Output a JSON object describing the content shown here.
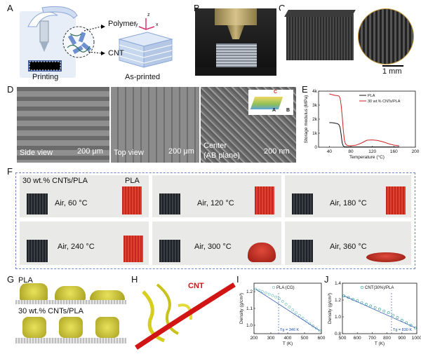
{
  "panels": {
    "A": {
      "label": "A",
      "polymer": "Polymer",
      "cnt": "CNT",
      "printing": "Printing",
      "as_printed": "As-printed",
      "axis_z": "z",
      "axis_y": "y",
      "axis_x": "x"
    },
    "B": {
      "label": "B"
    },
    "C": {
      "label": "C",
      "scalebar": "1 mm"
    },
    "D": {
      "label": "D",
      "side": "Side view",
      "side_scale": "200 μm",
      "top": "Top view",
      "top_scale": "200 μm",
      "center": "Center",
      "center2": "(AB plane)",
      "center_scale": "200 nm",
      "axis_a": "A",
      "axis_b": "B",
      "axis_c": "C"
    },
    "E": {
      "label": "E"
    },
    "F": {
      "label": "F",
      "label_cnt": "30 wt.% CNTs/PLA",
      "label_pla": "PLA",
      "conditions": [
        "Air, 60 °C",
        "Air, 120 °C",
        "Air, 180 °C",
        "Air, 240 °C",
        "Air, 300 °C",
        "Air, 360 °C"
      ]
    },
    "G": {
      "label": "G",
      "pla": "PLA",
      "cnt": "30 wt.% CNTs/PLA"
    },
    "H": {
      "label": "H",
      "cnt": "CNT"
    },
    "I": {
      "label": "I"
    },
    "J": {
      "label": "J"
    }
  },
  "chart_data": [
    {
      "type": "line",
      "panel": "E",
      "xlabel": "Temperature (°C)",
      "ylabel": "Storage modulus (MPa)",
      "xlim": [
        20,
        200
      ],
      "ylim": [
        0,
        4000
      ],
      "xticks": [
        "40",
        "80",
        "120",
        "160",
        "200"
      ],
      "yticks": [
        "0",
        "1k",
        "2k",
        "3k",
        "4k"
      ],
      "legend": "top-right",
      "series": [
        {
          "name": "PLA",
          "color": "#111111",
          "x": [
            40,
            45,
            50,
            55,
            58,
            60,
            62,
            64,
            66,
            68,
            70,
            75,
            80,
            90,
            100,
            120,
            140,
            160,
            170
          ],
          "y": [
            1750,
            1750,
            1720,
            1680,
            1600,
            1400,
            900,
            300,
            80,
            40,
            30,
            25,
            20,
            20,
            20,
            20,
            20,
            20,
            20
          ]
        },
        {
          "name": "30 wt.% CNTs/PLA",
          "color": "#cc2222",
          "x": [
            40,
            45,
            50,
            55,
            58,
            60,
            62,
            64,
            66,
            68,
            70,
            72,
            75,
            80,
            90,
            100,
            110,
            120,
            130,
            140,
            150,
            160,
            170
          ],
          "y": [
            3800,
            3750,
            3700,
            3680,
            3650,
            3500,
            3000,
            2200,
            1200,
            500,
            250,
            150,
            120,
            100,
            150,
            300,
            500,
            520,
            480,
            380,
            250,
            150,
            100
          ]
        }
      ]
    },
    {
      "type": "scatter",
      "panel": "I",
      "xlabel": "T (K)",
      "ylabel": "Density (g/cm³)",
      "xlim": [
        200,
        600
      ],
      "ylim": [
        0.95,
        1.25
      ],
      "xticks": [
        "200",
        "300",
        "400",
        "500",
        "600"
      ],
      "yticks": [
        "1.0",
        "1.1",
        "1.2"
      ],
      "legend_text": "PLA (CG)",
      "annotation": "Tg = 346 K",
      "tg": 346,
      "legend": "top-right",
      "series": [
        {
          "name": "PLA (CG)",
          "color": "#6bbfbf",
          "x": [
            210,
            230,
            250,
            270,
            290,
            310,
            330,
            350,
            370,
            390,
            410,
            430,
            450,
            470,
            490,
            510,
            530,
            550,
            570,
            590
          ],
          "y": [
            1.215,
            1.207,
            1.2,
            1.193,
            1.185,
            1.177,
            1.168,
            1.158,
            1.142,
            1.125,
            1.108,
            1.091,
            1.074,
            1.058,
            1.042,
            1.026,
            1.011,
            0.996,
            0.982,
            0.968
          ]
        }
      ]
    },
    {
      "type": "scatter",
      "panel": "J",
      "xlabel": "T (K)",
      "ylabel": "Density (g/cm³)",
      "xlim": [
        500,
        1000
      ],
      "ylim": [
        0.8,
        1.4
      ],
      "xticks": [
        "500",
        "600",
        "700",
        "800",
        "900",
        "1000"
      ],
      "yticks": [
        "0.8",
        "1.0",
        "1.2",
        "1.4"
      ],
      "legend_text": "CNT(30%)/PLA",
      "annotation": "Tg = 830 K",
      "tg": 830,
      "legend": "top-right",
      "series": [
        {
          "name": "CNT(30%)/PLA",
          "color": "#2a9d8f",
          "x": [
            510,
            540,
            570,
            600,
            630,
            660,
            690,
            720,
            750,
            780,
            810,
            840,
            870,
            900,
            930,
            960,
            990
          ],
          "y": [
            1.25,
            1.23,
            1.21,
            1.19,
            1.17,
            1.15,
            1.13,
            1.11,
            1.09,
            1.07,
            1.05,
            1.02,
            0.99,
            0.96,
            0.93,
            0.9,
            0.87
          ]
        }
      ]
    }
  ]
}
